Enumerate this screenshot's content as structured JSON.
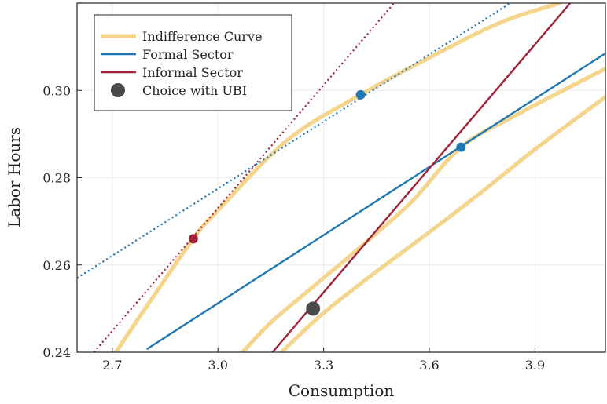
{
  "chart_data": {
    "type": "line",
    "title": "",
    "xlabel": "Consumption",
    "ylabel": "Labor Hours",
    "xlim": [
      2.6,
      4.1
    ],
    "ylim": [
      0.24,
      0.32
    ],
    "xticks": [
      2.7,
      3.0,
      3.3,
      3.6,
      3.9
    ],
    "xtick_labels": [
      "2.7",
      "3.0",
      "3.3",
      "3.6",
      "3.9"
    ],
    "yticks": [
      0.24,
      0.26,
      0.28,
      0.3
    ],
    "ytick_labels": [
      "0.24",
      "0.26",
      "0.28",
      "0.30"
    ],
    "grid": true,
    "legend_position": "top-left",
    "legend": [
      {
        "label": "Indifference Curve",
        "kind": "line",
        "color": "#F5D48C"
      },
      {
        "label": "Formal Sector",
        "kind": "line",
        "color": "#1F77B4"
      },
      {
        "label": "Informal Sector",
        "kind": "line",
        "color": "#A0233A"
      },
      {
        "label": "Choice with UBI",
        "kind": "marker",
        "color": "#4A4A4A"
      }
    ],
    "series": [
      {
        "role": "indifference",
        "style": "solid",
        "color": "#F5D48C",
        "points": [
          [
            2.71,
            0.24
          ],
          [
            2.8,
            0.2508
          ],
          [
            2.93,
            0.266
          ],
          [
            3.0,
            0.2725
          ],
          [
            3.2,
            0.2888
          ],
          [
            3.405,
            0.299
          ],
          [
            3.6,
            0.3075
          ],
          [
            3.8,
            0.3155
          ],
          [
            3.97,
            0.32
          ]
        ]
      },
      {
        "role": "indifference",
        "style": "solid",
        "color": "#F5D48C",
        "points": [
          [
            3.07,
            0.24
          ],
          [
            3.15,
            0.2468
          ],
          [
            3.27,
            0.255
          ],
          [
            3.4,
            0.2638
          ],
          [
            3.55,
            0.2745
          ],
          [
            3.69,
            0.287
          ],
          [
            3.85,
            0.2945
          ],
          [
            4.1,
            0.305
          ]
        ]
      },
      {
        "role": "indifference",
        "style": "solid",
        "color": "#F5D48C",
        "points": [
          [
            3.18,
            0.24
          ],
          [
            3.3,
            0.249
          ],
          [
            3.45,
            0.2585
          ],
          [
            3.6,
            0.2675
          ],
          [
            3.75,
            0.2768
          ],
          [
            3.9,
            0.2865
          ],
          [
            4.1,
            0.2985
          ]
        ]
      },
      {
        "role": "formal",
        "style": "solid",
        "color": "#1F77B4",
        "points": [
          [
            2.8,
            0.2408
          ],
          [
            4.1,
            0.3085
          ]
        ]
      },
      {
        "role": "informal",
        "style": "solid",
        "color": "#A0233A",
        "points": [
          [
            3.155,
            0.24
          ],
          [
            4.0,
            0.32
          ]
        ]
      },
      {
        "role": "formal",
        "style": "dotted",
        "color": "#1F77B4",
        "points": [
          [
            2.6,
            0.257
          ],
          [
            3.83,
            0.32
          ]
        ]
      },
      {
        "role": "informal",
        "style": "dotted",
        "color": "#A0233A",
        "points": [
          [
            2.648,
            0.24
          ],
          [
            3.5,
            0.32
          ]
        ]
      }
    ],
    "points": [
      {
        "x": 2.93,
        "y": 0.266,
        "color": "#A0233A",
        "size": "small"
      },
      {
        "x": 3.405,
        "y": 0.299,
        "color": "#1F77B4",
        "size": "small"
      },
      {
        "x": 3.69,
        "y": 0.287,
        "color": "#1F77B4",
        "size": "small"
      },
      {
        "x": 3.27,
        "y": 0.25,
        "color": "#4A4A4A",
        "size": "large"
      }
    ]
  }
}
